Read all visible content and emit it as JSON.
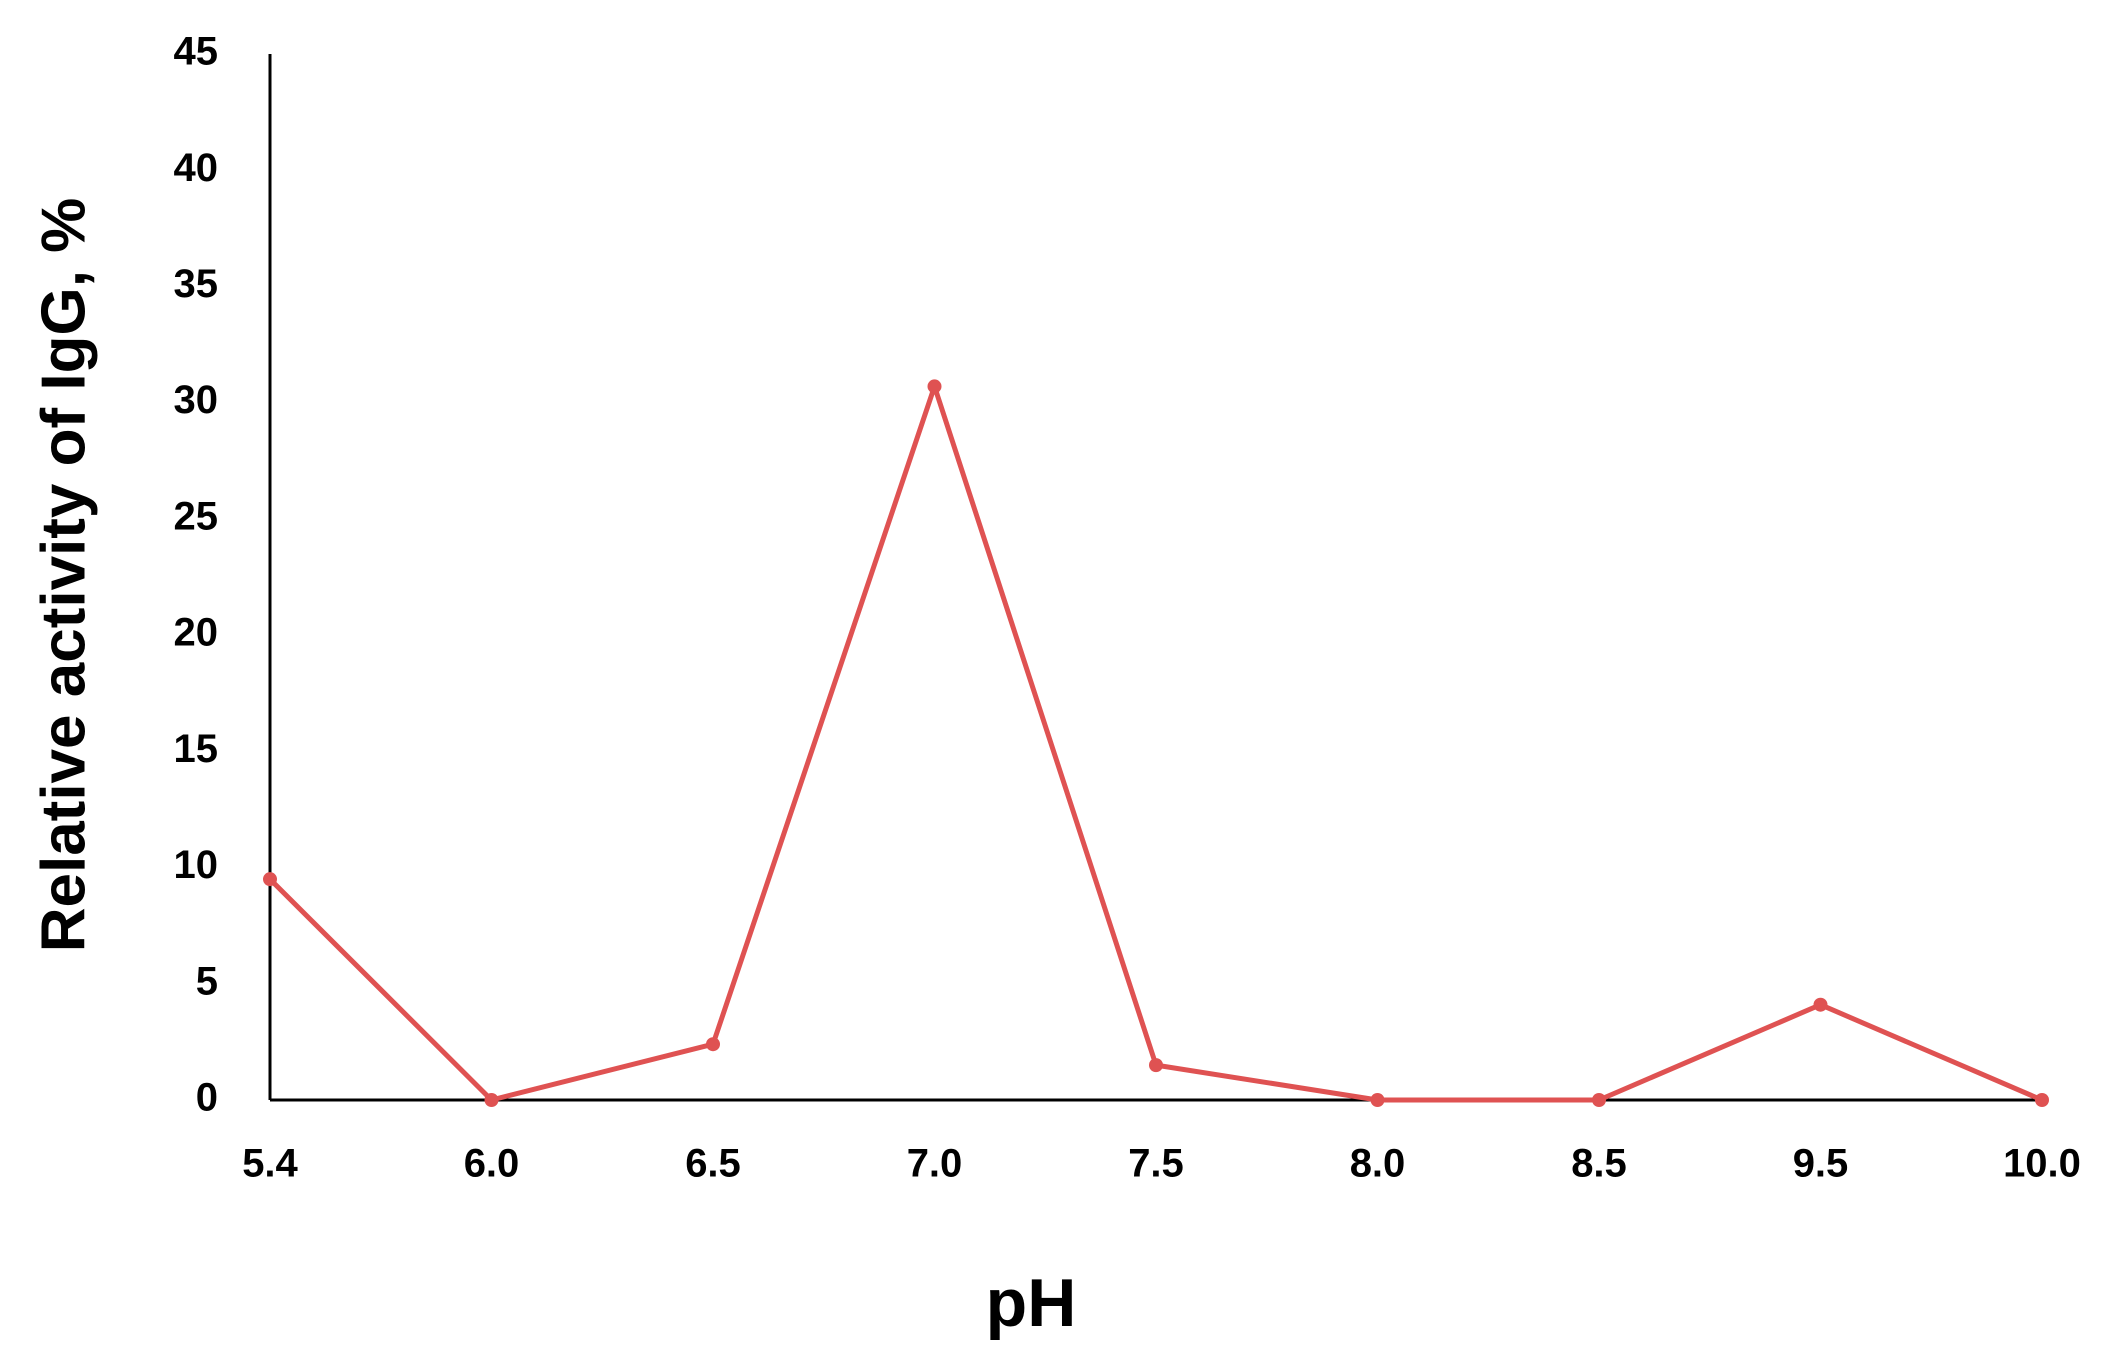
{
  "chart_data": {
    "type": "line",
    "x_label": "pH",
    "y_label": "Relative activity of IgG, %",
    "categories": [
      "5.4",
      "6.0",
      "6.5",
      "7.0",
      "7.5",
      "8.0",
      "8.5",
      "9.5",
      "10.0"
    ],
    "values": [
      9.5,
      0,
      2.4,
      30.7,
      1.5,
      0,
      0,
      4.1,
      0
    ],
    "color": "#df5252",
    "ylim": [
      0,
      45
    ],
    "yticks": [
      0,
      5,
      10,
      15,
      20,
      25,
      30,
      35,
      40,
      45
    ],
    "grid": false
  }
}
